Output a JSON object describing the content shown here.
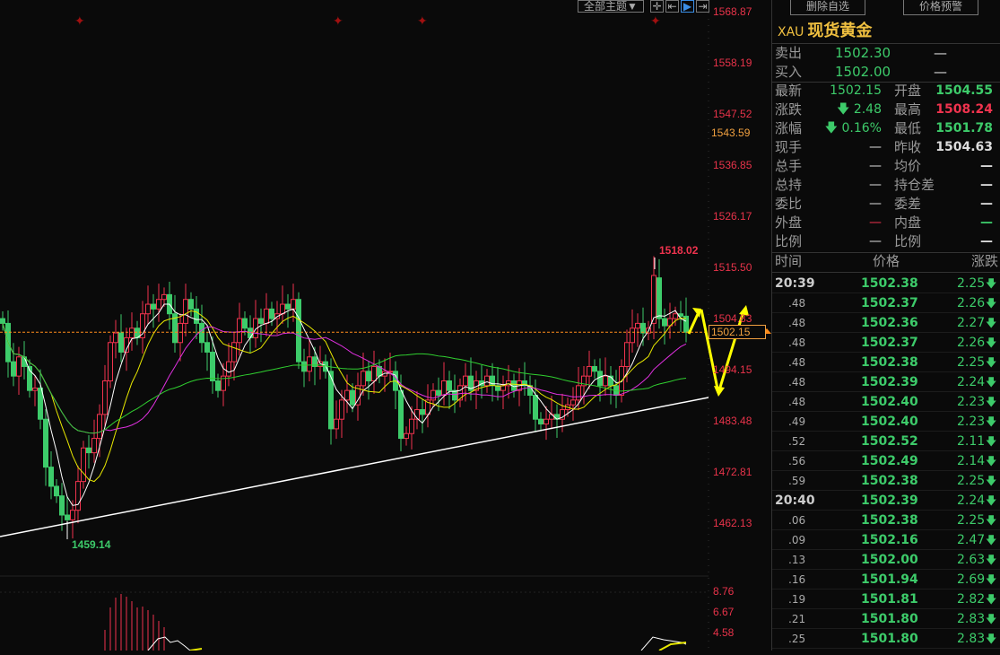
{
  "toolbar": {
    "theme_select": "全部主题▼",
    "tools": [
      "crosshair-icon",
      "range-icon",
      "play-icon",
      "move-right-icon"
    ]
  },
  "colors": {
    "up": "#f0334e",
    "down": "#3dcb6a",
    "ma5": "#ffffff",
    "ma10": "#e8e800",
    "ma20": "#e030e0",
    "ma60": "#30d030",
    "last_line": "#ff8c1a",
    "arrow": "#ffff00",
    "trend": "#ffffff"
  },
  "chart_data": {
    "type": "candlestick",
    "price_axis": [
      "1568.87",
      "1558.19",
      "1547.52",
      "1543.59",
      "1536.85",
      "1526.17",
      "1515.50",
      "1504.83",
      "1494.15",
      "1483.48",
      "1472.81",
      "1462.13"
    ],
    "ylim": [
      1462.13,
      1568.87
    ],
    "closes": [
      1504,
      1496,
      1493,
      1497,
      1495,
      1490,
      1490.5,
      1484,
      1474,
      1470,
      1468,
      1464,
      1463,
      1465,
      1471,
      1478,
      1477,
      1480,
      1485,
      1492,
      1500,
      1502,
      1498,
      1501,
      1503,
      1501,
      1506,
      1508,
      1507,
      1509,
      1510,
      1506,
      1500,
      1504,
      1509,
      1507,
      1504,
      1500,
      1498,
      1492,
      1490,
      1493,
      1496,
      1500,
      1505,
      1503,
      1501,
      1505,
      1504,
      1507,
      1505,
      1506,
      1508,
      1507,
      1509,
      1496,
      1494,
      1497,
      1495,
      1496,
      1494,
      1482,
      1484,
      1488,
      1490,
      1487,
      1491,
      1494,
      1492,
      1495,
      1493,
      1494,
      1494,
      1490,
      1480,
      1481,
      1484,
      1486,
      1485,
      1488,
      1490,
      1489,
      1492,
      1490,
      1488,
      1491,
      1493,
      1490,
      1492,
      1491,
      1493,
      1491,
      1490,
      1491,
      1492,
      1490,
      1492,
      1491,
      1489,
      1484,
      1483,
      1484,
      1485,
      1484,
      1486,
      1487,
      1488,
      1491,
      1493,
      1495,
      1494,
      1491,
      1493,
      1491,
      1489,
      1495,
      1500,
      1503,
      1504,
      1502,
      1503,
      1514,
      1505,
      1503.5,
      1505,
      1506,
      1505.5,
      1502.15
    ],
    "moving_averages": [
      5,
      10,
      20,
      60
    ],
    "high_label": "1518.02",
    "high": 1518.02,
    "low_label": "1459.14",
    "low": 1459.14,
    "last_price": "1502.15",
    "indicator_axis": [
      "8.76",
      "6.67",
      "4.58"
    ]
  },
  "panel": {
    "buttons": [
      "删除自选",
      "价格预警"
    ],
    "symbol": "XAU",
    "name": "现货黄金",
    "bidask": [
      {
        "label": "卖出",
        "value": "1502.30",
        "extra": "—"
      },
      {
        "label": "买入",
        "value": "1502.00",
        "extra": "—"
      }
    ],
    "quotes": [
      {
        "l1": "最新",
        "v1": "1502.15",
        "c1": "g",
        "l2": "开盘",
        "v2": "1504.55",
        "c2": "g"
      },
      {
        "l1": "涨跌",
        "v1": "🡇 2.48",
        "c1": "g",
        "l2": "最高",
        "v2": "1508.24",
        "c2": "r"
      },
      {
        "l1": "涨幅",
        "v1": "🡇 0.16%",
        "c1": "g",
        "l2": "最低",
        "v2": "1501.78",
        "c2": "g"
      },
      {
        "l1": "现手",
        "v1": "—",
        "c1": "w",
        "l2": "昨收",
        "v2": "1504.63",
        "c2": "w"
      },
      {
        "l1": "总手",
        "v1": "—",
        "c1": "w",
        "l2": "均价",
        "v2": "—",
        "c2": "w"
      },
      {
        "l1": "总持",
        "v1": "—",
        "c1": "w",
        "l2": "持仓差",
        "v2": "—",
        "c2": "w"
      },
      {
        "l1": "委比",
        "v1": "—",
        "c1": "w",
        "l2": "委差",
        "v2": "—",
        "c2": "w"
      },
      {
        "l1": "外盘",
        "v1": "—",
        "c1": "r",
        "l2": "内盘",
        "v2": "—",
        "c2": "g"
      },
      {
        "l1": "比例",
        "v1": "—",
        "c1": "w",
        "l2": "比例",
        "v2": "—",
        "c2": "w"
      }
    ],
    "tick_headers": [
      "时间",
      "价格",
      "涨跌"
    ],
    "ticks": [
      [
        "20:39",
        "1502.38",
        "2.25"
      ],
      [
        ".48",
        "1502.37",
        "2.26"
      ],
      [
        ".48",
        "1502.36",
        "2.27"
      ],
      [
        ".48",
        "1502.37",
        "2.26"
      ],
      [
        ".48",
        "1502.38",
        "2.25"
      ],
      [
        ".48",
        "1502.39",
        "2.24"
      ],
      [
        ".48",
        "1502.40",
        "2.23"
      ],
      [
        ".49",
        "1502.40",
        "2.23"
      ],
      [
        ".52",
        "1502.52",
        "2.11"
      ],
      [
        ".56",
        "1502.49",
        "2.14"
      ],
      [
        ".59",
        "1502.38",
        "2.25"
      ],
      [
        "20:40",
        "1502.39",
        "2.24"
      ],
      [
        ".06",
        "1502.38",
        "2.25"
      ],
      [
        ".09",
        "1502.16",
        "2.47"
      ],
      [
        ".13",
        "1502.00",
        "2.63"
      ],
      [
        ".16",
        "1501.94",
        "2.69"
      ],
      [
        ".19",
        "1501.81",
        "2.82"
      ],
      [
        ".21",
        "1501.80",
        "2.83"
      ],
      [
        ".25",
        "1501.80",
        "2.83"
      ]
    ]
  }
}
